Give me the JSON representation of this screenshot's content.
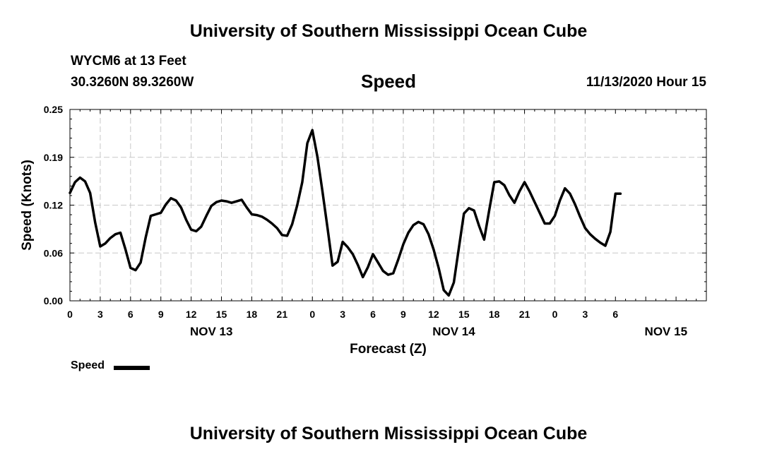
{
  "header": {
    "title": "University of Southern Mississippi Ocean Cube",
    "station": "WYCM6 at 13 Feet",
    "coords": "30.3260N 89.3260W",
    "timestamp": "11/13/2020 Hour 15"
  },
  "footer": {
    "title": "University of Southern Mississippi Ocean Cube"
  },
  "legend": {
    "label": "Speed"
  },
  "chart_data": {
    "type": "line",
    "title": "Speed",
    "xlabel": "Forecast (Z)",
    "ylabel": "Speed (Knots)",
    "ylim": [
      0,
      0.25
    ],
    "xlim": [
      0,
      63
    ],
    "y_ticks": [
      "0.00",
      "0.06",
      "0.12",
      "0.19",
      "0.25"
    ],
    "x_tick_labels": [
      "0",
      "3",
      "6",
      "9",
      "12",
      "15",
      "18",
      "21",
      "0",
      "3",
      "6",
      "9",
      "12",
      "15",
      "18",
      "21",
      "0",
      "3",
      "6"
    ],
    "date_labels": [
      {
        "label": "NOV 13",
        "hour": 14
      },
      {
        "label": "NOV 14",
        "hour": 38
      },
      {
        "label": "NOV 15",
        "hour": 59
      }
    ],
    "grid": true,
    "series": [
      {
        "name": "Speed",
        "color": "#000000",
        "x": [
          0,
          0.5,
          1,
          1.5,
          2,
          2.5,
          3,
          3.5,
          4,
          4.5,
          5,
          5.5,
          6,
          6.5,
          7,
          7.5,
          8,
          8.5,
          9,
          9.5,
          10,
          10.5,
          11,
          11.5,
          12,
          12.5,
          13,
          13.5,
          14,
          14.5,
          15,
          15.5,
          16,
          16.5,
          17,
          17.5,
          18,
          18.5,
          19,
          19.5,
          20,
          20.5,
          21,
          21.5,
          22,
          22.5,
          23,
          23.5,
          24,
          24.5,
          25,
          25.5,
          26,
          26.5,
          27,
          27.5,
          28,
          28.5,
          29,
          29.5,
          30,
          30.5,
          31,
          31.5,
          32,
          32.5,
          33,
          33.5,
          34,
          34.5,
          35,
          35.5,
          36,
          36.5,
          37,
          37.5,
          38,
          38.5,
          39,
          39.5,
          40,
          40.5,
          41,
          41.5,
          42,
          42.5,
          43,
          43.5,
          44,
          44.5,
          45,
          45.5,
          46,
          46.5,
          47,
          47.5,
          48,
          48.5,
          49,
          49.5,
          50,
          50.5,
          51,
          51.5,
          52,
          52.5,
          53,
          53.5,
          54,
          54.5
        ],
        "values": [
          0.141,
          0.155,
          0.161,
          0.156,
          0.141,
          0.102,
          0.071,
          0.075,
          0.082,
          0.087,
          0.089,
          0.067,
          0.043,
          0.04,
          0.05,
          0.083,
          0.111,
          0.113,
          0.115,
          0.126,
          0.134,
          0.131,
          0.122,
          0.106,
          0.093,
          0.091,
          0.097,
          0.111,
          0.124,
          0.129,
          0.131,
          0.13,
          0.128,
          0.13,
          0.132,
          0.122,
          0.113,
          0.112,
          0.11,
          0.106,
          0.101,
          0.095,
          0.086,
          0.085,
          0.1,
          0.125,
          0.155,
          0.206,
          0.223,
          0.188,
          0.143,
          0.095,
          0.046,
          0.051,
          0.077,
          0.07,
          0.061,
          0.047,
          0.031,
          0.044,
          0.061,
          0.05,
          0.039,
          0.034,
          0.036,
          0.054,
          0.074,
          0.089,
          0.099,
          0.103,
          0.1,
          0.087,
          0.067,
          0.043,
          0.014,
          0.007,
          0.024,
          0.069,
          0.114,
          0.121,
          0.118,
          0.098,
          0.08,
          0.118,
          0.155,
          0.156,
          0.151,
          0.138,
          0.128,
          0.143,
          0.155,
          0.143,
          0.129,
          0.115,
          0.101,
          0.101,
          0.111,
          0.131,
          0.147,
          0.14,
          0.126,
          0.11,
          0.095,
          0.087,
          0.081,
          0.076,
          0.072,
          0.09,
          0.14,
          0.14
        ]
      }
    ]
  }
}
